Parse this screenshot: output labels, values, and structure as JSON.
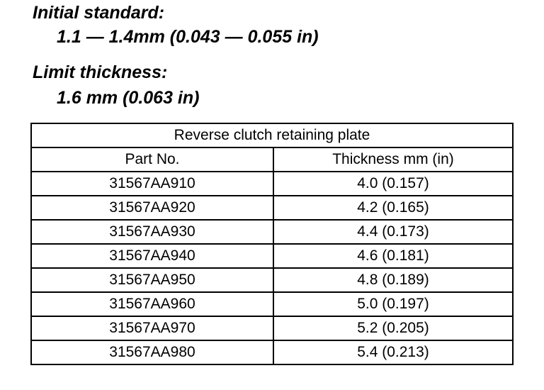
{
  "specs": [
    {
      "label": "Initial standard:",
      "value": "1.1 — 1.4mm (0.043 — 0.055 in)"
    },
    {
      "label": "Limit thickness:",
      "value": "1.6 mm (0.063 in)"
    }
  ],
  "table": {
    "title": "Reverse clutch retaining plate",
    "columns": [
      "Part No.",
      "Thickness mm (in)"
    ],
    "rows": [
      [
        "31567AA910",
        "4.0 (0.157)"
      ],
      [
        "31567AA920",
        "4.2 (0.165)"
      ],
      [
        "31567AA930",
        "4.4 (0.173)"
      ],
      [
        "31567AA940",
        "4.6 (0.181)"
      ],
      [
        "31567AA950",
        "4.8 (0.189)"
      ],
      [
        "31567AA960",
        "5.0 (0.197)"
      ],
      [
        "31567AA970",
        "5.2 (0.205)"
      ],
      [
        "31567AA980",
        "5.4 (0.213)"
      ]
    ]
  }
}
